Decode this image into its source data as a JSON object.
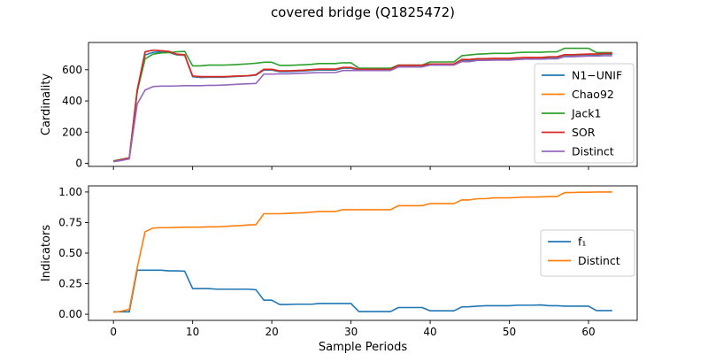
{
  "title": "covered bridge (Q1825472)",
  "chart_data": [
    {
      "type": "line",
      "ylabel": "Cardinality",
      "xlabel": "",
      "xlim": [
        -3.15,
        66.15
      ],
      "ylim": [
        -20,
        775
      ],
      "xticks": [
        0,
        10,
        20,
        30,
        40,
        50,
        60
      ],
      "yticks": [
        0,
        200,
        400,
        600
      ],
      "grid": false,
      "legend": "lower-right",
      "series": [
        {
          "name": "N1−UNIF",
          "color": "#1f77b4",
          "values": [
            12,
            20,
            30,
            460,
            695,
            712,
            714,
            712,
            695,
            692,
            555,
            550,
            552,
            552,
            552,
            555,
            558,
            560,
            565,
            598,
            598,
            588,
            588,
            590,
            592,
            596,
            598,
            598,
            598,
            610,
            610,
            598,
            598,
            598,
            598,
            598,
            625,
            625,
            625,
            625,
            632,
            632,
            632,
            632,
            660,
            660,
            665,
            665,
            668,
            668,
            668,
            672,
            675,
            675,
            675,
            678,
            678,
            690,
            690,
            692,
            695,
            695,
            700,
            700
          ]
        },
        {
          "name": "Chao92",
          "color": "#ff7f0e",
          "values": [
            12,
            22,
            32,
            462,
            715,
            726,
            722,
            718,
            698,
            695,
            560,
            555,
            555,
            555,
            555,
            558,
            560,
            562,
            568,
            602,
            602,
            592,
            592,
            594,
            596,
            600,
            603,
            603,
            603,
            614,
            614,
            602,
            602,
            602,
            602,
            602,
            628,
            628,
            628,
            628,
            636,
            636,
            636,
            636,
            665,
            665,
            670,
            670,
            672,
            672,
            672,
            676,
            678,
            678,
            678,
            682,
            682,
            696,
            696,
            698,
            700,
            700,
            704,
            704
          ]
        },
        {
          "name": "Jack1",
          "color": "#2ca02c",
          "values": [
            15,
            25,
            35,
            460,
            670,
            700,
            708,
            710,
            715,
            718,
            625,
            625,
            630,
            630,
            630,
            632,
            635,
            638,
            642,
            648,
            648,
            628,
            628,
            630,
            632,
            635,
            640,
            640,
            640,
            645,
            645,
            610,
            610,
            610,
            610,
            610,
            630,
            630,
            630,
            630,
            650,
            650,
            650,
            650,
            690,
            695,
            700,
            702,
            705,
            705,
            705,
            710,
            712,
            712,
            712,
            715,
            715,
            738,
            738,
            738,
            738,
            710,
            710,
            710
          ]
        },
        {
          "name": "SOR",
          "color": "#d62728",
          "values": [
            12,
            24,
            34,
            470,
            715,
            726,
            722,
            718,
            700,
            697,
            560,
            556,
            556,
            556,
            556,
            558,
            560,
            562,
            568,
            603,
            603,
            593,
            593,
            595,
            597,
            601,
            604,
            604,
            604,
            615,
            615,
            603,
            603,
            603,
            603,
            603,
            629,
            629,
            629,
            629,
            637,
            637,
            637,
            637,
            666,
            666,
            671,
            671,
            673,
            673,
            673,
            677,
            679,
            679,
            679,
            683,
            683,
            697,
            697,
            699,
            701,
            701,
            705,
            705
          ]
        },
        {
          "name": "Distinct",
          "color": "#9467bd",
          "values": [
            10,
            18,
            28,
            380,
            470,
            492,
            495,
            495,
            496,
            498,
            498,
            498,
            500,
            500,
            502,
            505,
            508,
            510,
            512,
            572,
            572,
            574,
            574,
            576,
            578,
            580,
            582,
            582,
            582,
            595,
            595,
            595,
            595,
            595,
            595,
            595,
            618,
            618,
            618,
            618,
            630,
            630,
            630,
            630,
            652,
            652,
            660,
            660,
            662,
            662,
            662,
            665,
            668,
            668,
            668,
            670,
            670,
            684,
            684,
            686,
            688,
            688,
            690,
            690
          ]
        }
      ]
    },
    {
      "type": "line",
      "ylabel": "Indicators",
      "xlabel": "Sample Periods",
      "xlim": [
        -3.15,
        66.15
      ],
      "ylim": [
        -0.05,
        1.05
      ],
      "xticks": [
        0,
        10,
        20,
        30,
        40,
        50,
        60
      ],
      "yticks": [
        0.0,
        0.25,
        0.5,
        0.75,
        1.0
      ],
      "grid": false,
      "legend": "right",
      "series": [
        {
          "name": "f₁",
          "color": "#1f77b4",
          "values": [
            0.02,
            0.02,
            0.02,
            0.36,
            0.36,
            0.36,
            0.36,
            0.355,
            0.355,
            0.352,
            0.21,
            0.21,
            0.21,
            0.205,
            0.205,
            0.205,
            0.205,
            0.205,
            0.2,
            0.115,
            0.115,
            0.08,
            0.08,
            0.082,
            0.082,
            0.082,
            0.088,
            0.088,
            0.088,
            0.088,
            0.088,
            0.022,
            0.022,
            0.022,
            0.022,
            0.022,
            0.055,
            0.055,
            0.055,
            0.055,
            0.028,
            0.028,
            0.028,
            0.028,
            0.06,
            0.062,
            0.066,
            0.07,
            0.07,
            0.07,
            0.07,
            0.074,
            0.074,
            0.074,
            0.076,
            0.07,
            0.07,
            0.066,
            0.066,
            0.066,
            0.066,
            0.03,
            0.03,
            0.03
          ]
        },
        {
          "name": "Distinct",
          "color": "#ff7f0e",
          "values": [
            0.015,
            0.025,
            0.04,
            0.38,
            0.675,
            0.705,
            0.708,
            0.708,
            0.71,
            0.712,
            0.712,
            0.712,
            0.715,
            0.715,
            0.718,
            0.722,
            0.725,
            0.73,
            0.732,
            0.822,
            0.822,
            0.822,
            0.825,
            0.828,
            0.83,
            0.835,
            0.84,
            0.84,
            0.84,
            0.855,
            0.855,
            0.855,
            0.855,
            0.855,
            0.855,
            0.855,
            0.888,
            0.888,
            0.888,
            0.888,
            0.905,
            0.905,
            0.905,
            0.905,
            0.935,
            0.935,
            0.945,
            0.945,
            0.952,
            0.952,
            0.952,
            0.955,
            0.958,
            0.958,
            0.96,
            0.962,
            0.962,
            0.995,
            0.995,
            0.998,
            0.998,
            1.0,
            1.0,
            1.0
          ]
        }
      ]
    }
  ]
}
